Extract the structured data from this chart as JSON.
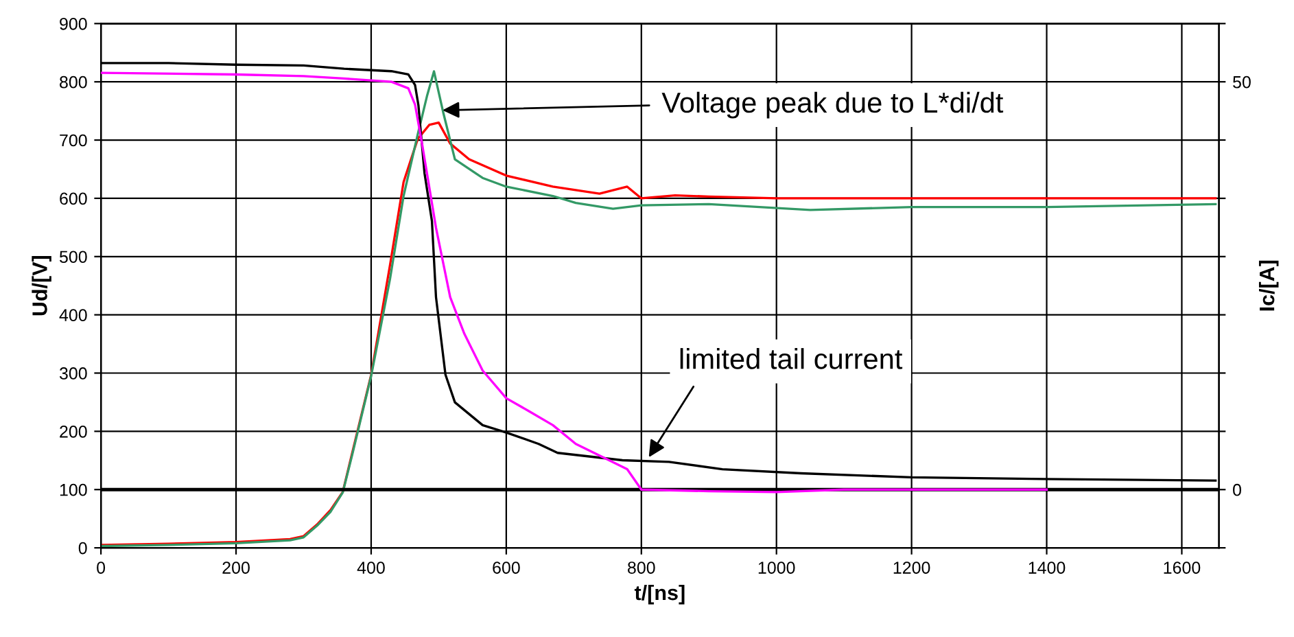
{
  "chart_data": {
    "type": "line",
    "xlabel": "t/[ns]",
    "ylabel": "Ud/[V]",
    "y2label": "Ic/[A]",
    "xlim": [
      0,
      1655
    ],
    "xticks": [
      0,
      200,
      400,
      600,
      800,
      1000,
      1200,
      1400,
      1600
    ],
    "ylim": [
      0,
      900
    ],
    "yticks": [
      0,
      100,
      200,
      300,
      400,
      500,
      600,
      700,
      800,
      900
    ],
    "y2lim": [
      -7.14,
      57.14
    ],
    "y2ticks": [
      {
        "value": -7.14,
        "label": null
      },
      0,
      {
        "value": 7.14,
        "label": null
      },
      {
        "value": 14.29,
        "label": null
      },
      {
        "value": 21.43,
        "label": null
      },
      {
        "value": 28.57,
        "label": null
      },
      {
        "value": 35.71,
        "label": null
      },
      {
        "value": 42.86,
        "label": null
      },
      50,
      {
        "value": 57.14,
        "label": null
      }
    ],
    "grid": true,
    "legend": false,
    "marker": "none",
    "line_style": "solid",
    "ref_lines": [
      {
        "axis": "y2",
        "value": 0,
        "color": "#000000"
      }
    ],
    "annotations": [
      {
        "text": "Voltage peak due to L*di/dt",
        "x": 500,
        "y": 751
      },
      {
        "text": "limited tail current",
        "x": 808,
        "y": 150
      }
    ],
    "series": [
      {
        "color": "#ff0000",
        "x": [
          0,
          100,
          200,
          280,
          300,
          320,
          340,
          358,
          372,
          400,
          428,
          448,
          469,
          486,
          500,
          517,
          545,
          600,
          669,
          738,
          779,
          800,
          850,
          900,
          1000,
          1200,
          1400,
          1650
        ],
        "values": [
          5,
          7,
          10,
          15,
          20,
          40,
          65,
          96,
          163,
          297,
          486,
          628,
          702,
          726,
          730,
          694,
          667,
          639,
          620,
          608,
          620,
          600,
          605,
          603,
          600,
          600,
          600,
          600
        ]
      },
      {
        "color": "#339966",
        "x": [
          0,
          100,
          200,
          280,
          300,
          320,
          340,
          358,
          372,
          400,
          428,
          448,
          469,
          483,
          493,
          507,
          524,
          565,
          600,
          669,
          703,
          758,
          800,
          900,
          1050,
          1200,
          1400,
          1650
        ],
        "values": [
          3,
          5,
          8,
          13,
          18,
          38,
          62,
          95,
          160,
          295,
          462,
          604,
          710,
          777,
          818,
          746,
          667,
          635,
          620,
          604,
          592,
          582,
          588,
          590,
          580,
          585,
          585,
          590
        ]
      },
      {
        "color": "#000000",
        "axis": "y2",
        "x": [
          0,
          100,
          200,
          300,
          360,
          430,
          455,
          465,
          470,
          479,
          490,
          496,
          510,
          524,
          565,
          600,
          648,
          676,
          772,
          841,
          920,
          1036,
          1200,
          1398,
          1650
        ],
        "values": [
          52.3,
          52.3,
          52.1,
          52.0,
          51.6,
          51.3,
          50.9,
          49.6,
          47.1,
          38.8,
          32.9,
          23.6,
          14.1,
          10.7,
          7.9,
          7.0,
          5.6,
          4.5,
          3.6,
          3.4,
          2.5,
          2.0,
          1.5,
          1.3,
          1.1
        ]
      },
      {
        "color": "#ff00ff",
        "axis": "y2",
        "x": [
          0,
          200,
          300,
          360,
          430,
          455,
          465,
          476,
          496,
          517,
          538,
          565,
          600,
          634,
          669,
          703,
          745,
          779,
          800,
          900,
          1000,
          1100,
          1200,
          1300,
          1400
        ],
        "values": [
          51.1,
          50.9,
          50.7,
          50.4,
          50.0,
          49.2,
          47.2,
          42.1,
          32.1,
          23.6,
          19.1,
          14.6,
          11.2,
          9.6,
          7.9,
          5.6,
          3.9,
          2.5,
          0,
          -0.2,
          -0.3,
          0,
          0,
          0,
          0
        ]
      }
    ]
  }
}
